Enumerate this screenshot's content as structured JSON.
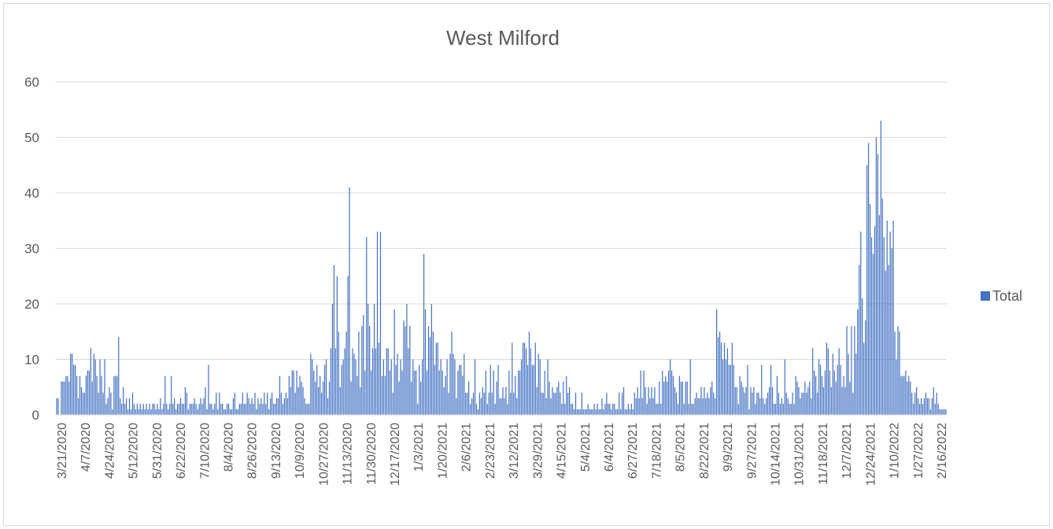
{
  "chart_data": {
    "type": "bar",
    "title": "West Milford",
    "xlabel": "",
    "ylabel": "",
    "ylim": [
      0,
      60
    ],
    "y_ticks": [
      0,
      10,
      20,
      30,
      40,
      50,
      60
    ],
    "grid": true,
    "legend_position": "right",
    "x_tick_labels": [
      "3/21/2020",
      "4/7/2020",
      "4/24/2020",
      "5/12/2020",
      "5/31/2020",
      "6/22/2020",
      "7/10/2020",
      "8/4/2020",
      "8/26/2020",
      "9/13/2020",
      "10/9/2020",
      "10/27/2020",
      "11/13/2020",
      "11/30/2020",
      "12/17/2020",
      "1/3/2021",
      "1/20/2021",
      "2/6/2021",
      "2/23/2021",
      "3/12/2021",
      "3/29/2021",
      "4/15/2021",
      "5/4/2021",
      "6/4/2021",
      "6/27/2021",
      "7/18/2021",
      "8/5/2021",
      "8/22/2021",
      "9/9/2021",
      "9/27/2021",
      "10/14/2021",
      "10/31/2021",
      "11/18/2021",
      "12/7/2021",
      "12/24/2021",
      "1/10/2022",
      "1/27/2022",
      "2/16/2022"
    ],
    "series": [
      {
        "name": "Total",
        "color": "#4472c4",
        "values": [
          3,
          3,
          0,
          6,
          6,
          6,
          7,
          7,
          6,
          11,
          11,
          9,
          9,
          7,
          3,
          7,
          5,
          4,
          4,
          7,
          8,
          8,
          12,
          6,
          11,
          10,
          7,
          4,
          10,
          7,
          4,
          10,
          2,
          3,
          5,
          4,
          1,
          7,
          7,
          7,
          14,
          3,
          2,
          5,
          2,
          3,
          1,
          3,
          1,
          4,
          2,
          1,
          2,
          1,
          2,
          1,
          2,
          1,
          2,
          1,
          2,
          1,
          2,
          2,
          1,
          2,
          1,
          3,
          1,
          2,
          7,
          2,
          1,
          2,
          7,
          2,
          3,
          1,
          2,
          2,
          3,
          2,
          2,
          5,
          4,
          1,
          2,
          2,
          2,
          3,
          2,
          1,
          2,
          3,
          2,
          3,
          5,
          1,
          9,
          2,
          2,
          1,
          2,
          4,
          1,
          4,
          2,
          2,
          1,
          1,
          2,
          2,
          1,
          1,
          3,
          4,
          1,
          1,
          2,
          2,
          4,
          2,
          2,
          4,
          3,
          2,
          3,
          2,
          4,
          1,
          3,
          2,
          3,
          2,
          4,
          2,
          4,
          1,
          3,
          4,
          2,
          2,
          3,
          3,
          7,
          4,
          2,
          3,
          4,
          3,
          7,
          5,
          8,
          8,
          4,
          8,
          5,
          7,
          6,
          5,
          3,
          2,
          2,
          2,
          11,
          10,
          8,
          6,
          9,
          5,
          7,
          4,
          6,
          9,
          10,
          3,
          6,
          12,
          20,
          27,
          12,
          25,
          15,
          5,
          9,
          10,
          12,
          15,
          25,
          41,
          6,
          12,
          11,
          10,
          7,
          15,
          5,
          16,
          18,
          8,
          32,
          20,
          16,
          8,
          12,
          20,
          12,
          33,
          13,
          33,
          7,
          10,
          7,
          12,
          12,
          8,
          10,
          4,
          19,
          9,
          11,
          6,
          10,
          8,
          17,
          16,
          20,
          12,
          16,
          6,
          10,
          8,
          8,
          2,
          9,
          6,
          10,
          29,
          19,
          8,
          16,
          14,
          20,
          15,
          9,
          13,
          13,
          8,
          10,
          8,
          5,
          7,
          10,
          4,
          11,
          15,
          11,
          10,
          3,
          8,
          9,
          9,
          7,
          11,
          4,
          4,
          6,
          2,
          3,
          4,
          10,
          2,
          1,
          4,
          3,
          5,
          4,
          8,
          2,
          4,
          9,
          4,
          8,
          2,
          6,
          9,
          3,
          3,
          5,
          3,
          5,
          2,
          8,
          4,
          13,
          4,
          7,
          3,
          8,
          8,
          10,
          13,
          13,
          12,
          9,
          15,
          12,
          9,
          9,
          13,
          5,
          11,
          10,
          4,
          4,
          8,
          3,
          10,
          6,
          3,
          5,
          4,
          4,
          5,
          6,
          4,
          2,
          6,
          2,
          7,
          4,
          5,
          2,
          2,
          1,
          4,
          1,
          1,
          1,
          4,
          1,
          1,
          1,
          2,
          1,
          1,
          1,
          2,
          1,
          2,
          1,
          1,
          3,
          1,
          2,
          4,
          2,
          2,
          1,
          2,
          2,
          1,
          1,
          4,
          1,
          4,
          5,
          1,
          1,
          2,
          1,
          2,
          1,
          4,
          3,
          5,
          3,
          8,
          3,
          8,
          5,
          2,
          5,
          3,
          5,
          3,
          5,
          2,
          2,
          6,
          2,
          8,
          6,
          7,
          6,
          8,
          10,
          8,
          7,
          5,
          4,
          2,
          7,
          6,
          6,
          2,
          6,
          6,
          2,
          10,
          2,
          2,
          3,
          4,
          3,
          3,
          5,
          3,
          5,
          3,
          4,
          3,
          5,
          6,
          4,
          3,
          19,
          14,
          15,
          13,
          10,
          13,
          10,
          12,
          9,
          9,
          13,
          9,
          5,
          5,
          2,
          7,
          6,
          5,
          4,
          5,
          9,
          1,
          5,
          4,
          5,
          2,
          4,
          4,
          3,
          9,
          3,
          2,
          3,
          4,
          5,
          9,
          5,
          2,
          2,
          7,
          4,
          2,
          3,
          2,
          10,
          4,
          3,
          2,
          2,
          4,
          2,
          7,
          6,
          5,
          3,
          4,
          4,
          6,
          4,
          5,
          6,
          3,
          12,
          8,
          7,
          4,
          10,
          9,
          7,
          5,
          8,
          13,
          12,
          8,
          5,
          11,
          8,
          6,
          9,
          12,
          9,
          5,
          7,
          5,
          16,
          11,
          6,
          16,
          4,
          16,
          11,
          19,
          27,
          33,
          21,
          13,
          17,
          45,
          49,
          38,
          32,
          29,
          34,
          50,
          47,
          36,
          53,
          39,
          32,
          26,
          35,
          27,
          33,
          30,
          35,
          15,
          10,
          16,
          15,
          7,
          7,
          7,
          8,
          6,
          7,
          6,
          4,
          2,
          4,
          5,
          3,
          2,
          3,
          2,
          3,
          4,
          3,
          3,
          1,
          3,
          5,
          2,
          4,
          2,
          1,
          1,
          1,
          1,
          1
        ]
      }
    ]
  }
}
